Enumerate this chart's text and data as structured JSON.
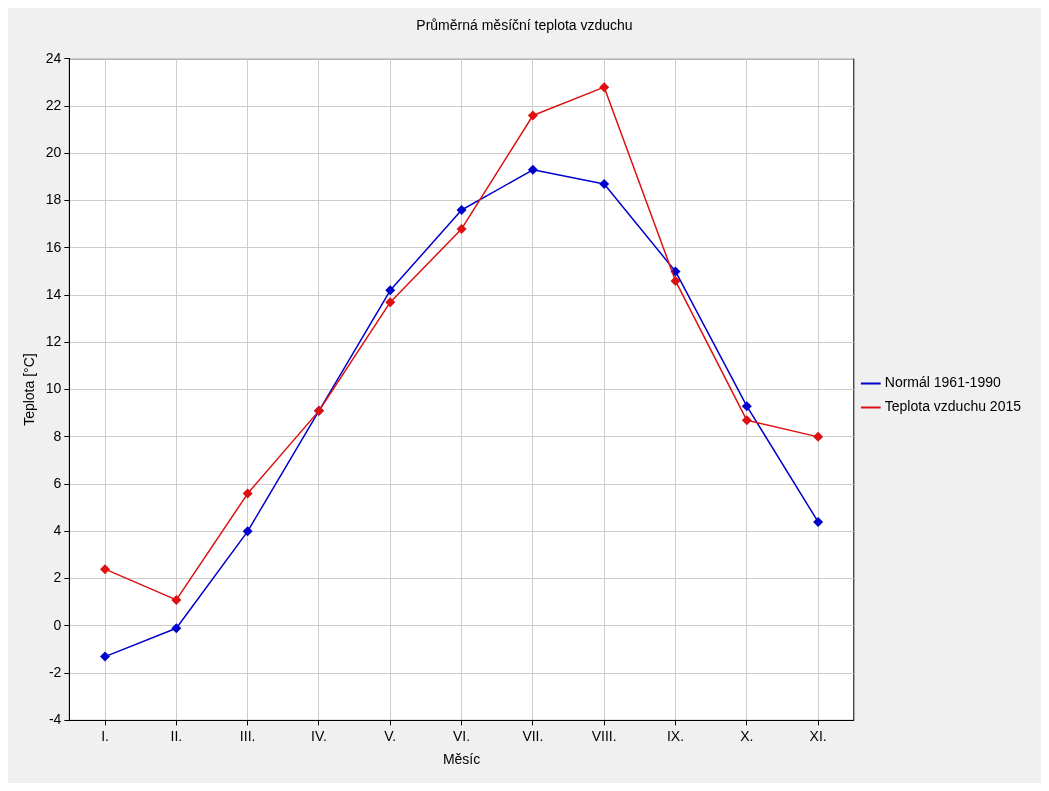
{
  "chart_data": {
    "type": "line",
    "title": "Průměrná měsíční teplota vzduchu",
    "xlabel": "Měsíc",
    "ylabel": "Teplota [°C]",
    "categories": [
      "I.",
      "II.",
      "III.",
      "IV.",
      "V.",
      "VI.",
      "VII.",
      "VIII.",
      "IX.",
      "X.",
      "XI."
    ],
    "series": [
      {
        "name": "Normál 1961-1990",
        "color": "#0000cc",
        "values": [
          -1.3,
          -0.1,
          4.0,
          9.1,
          14.2,
          17.6,
          19.3,
          18.7,
          15.0,
          9.3,
          4.4
        ]
      },
      {
        "name": "Teplota vzduchu 2015",
        "color": "#dd1111",
        "values": [
          2.4,
          1.1,
          5.6,
          9.1,
          13.7,
          16.8,
          21.6,
          22.8,
          14.6,
          8.7,
          8.0
        ]
      }
    ],
    "ylim": [
      -4,
      24
    ],
    "yticks": [
      -4,
      -2,
      0,
      2,
      4,
      6,
      8,
      10,
      12,
      14,
      16,
      18,
      20,
      22,
      24
    ],
    "grid": true,
    "legend": "right",
    "marker": "diamond",
    "line_style": "solid"
  }
}
